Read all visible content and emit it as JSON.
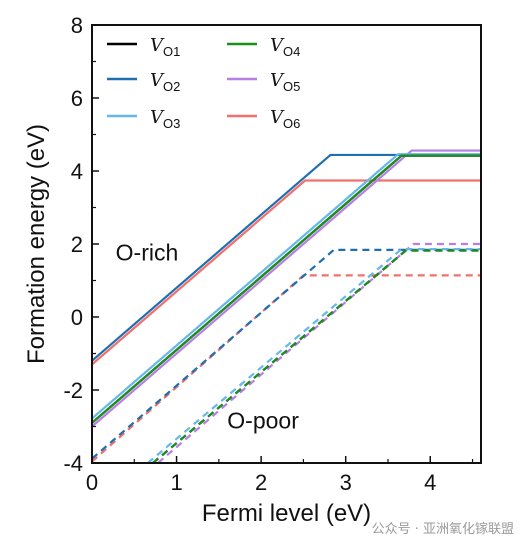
{
  "chart_data": {
    "type": "line",
    "xlabel": "Fermi level (eV)",
    "ylabel": "Formation energy (eV)",
    "xlim": [
      0,
      4.6
    ],
    "ylim": [
      -4,
      8
    ],
    "xticks": [
      0,
      1,
      2,
      3,
      4
    ],
    "yticks": [
      -4,
      -2,
      0,
      2,
      4,
      6,
      8
    ],
    "grid": false,
    "legend": "top-left",
    "legend_entries": [
      {
        "key": "VO1",
        "base": "V",
        "sub": "O1",
        "color": "#000000"
      },
      {
        "key": "VO2",
        "base": "V",
        "sub": "O2",
        "color": "#1f6fb0"
      },
      {
        "key": "VO3",
        "base": "V",
        "sub": "O3",
        "color": "#66b8e8"
      },
      {
        "key": "VO4",
        "base": "V",
        "sub": "O4",
        "color": "#1a8f1a"
      },
      {
        "key": "VO5",
        "base": "V",
        "sub": "O5",
        "color": "#b77ee6"
      },
      {
        "key": "VO6",
        "base": "V",
        "sub": "O6",
        "color": "#f0706e"
      }
    ],
    "annotations": [
      {
        "text": "O-rich",
        "x": 0.28,
        "y": 1.55
      },
      {
        "text": "O-poor",
        "x": 1.6,
        "y": -3.05
      }
    ],
    "series": [
      {
        "key": "VO1",
        "condition": "O-rich",
        "style": "solid",
        "x": [
          0,
          3.66,
          4.6
        ],
        "y": [
          -2.9,
          4.42,
          4.42
        ]
      },
      {
        "key": "VO2",
        "condition": "O-rich",
        "style": "solid",
        "x": [
          0,
          2.82,
          4.6
        ],
        "y": [
          -1.2,
          4.44,
          4.44
        ]
      },
      {
        "key": "VO3",
        "condition": "O-rich",
        "style": "solid",
        "x": [
          0,
          3.62,
          4.6
        ],
        "y": [
          -2.78,
          4.46,
          4.46
        ]
      },
      {
        "key": "VO4",
        "condition": "O-rich",
        "style": "solid",
        "x": [
          0,
          3.66,
          4.6
        ],
        "y": [
          -2.9,
          4.42,
          4.42
        ]
      },
      {
        "key": "VO5",
        "condition": "O-rich",
        "style": "solid",
        "x": [
          0,
          3.78,
          4.6
        ],
        "y": [
          -3.0,
          4.56,
          4.56
        ]
      },
      {
        "key": "VO6",
        "condition": "O-rich",
        "style": "solid",
        "x": [
          0,
          2.52,
          4.6
        ],
        "y": [
          -1.3,
          3.74,
          3.74
        ]
      },
      {
        "key": "VO1",
        "condition": "O-poor",
        "style": "dashed",
        "x": [
          0.72,
          3.71,
          4.6
        ],
        "y": [
          -4.0,
          1.82,
          1.82
        ]
      },
      {
        "key": "VO2",
        "condition": "O-poor",
        "style": "dashed",
        "x": [
          0,
          2.86,
          4.6
        ],
        "y": [
          -3.88,
          1.84,
          1.84
        ]
      },
      {
        "key": "VO3",
        "condition": "O-poor",
        "style": "dashed",
        "x": [
          0.66,
          3.66,
          4.6
        ],
        "y": [
          -4.0,
          1.86,
          1.86
        ]
      },
      {
        "key": "VO4",
        "condition": "O-poor",
        "style": "dashed",
        "x": [
          0.72,
          3.71,
          4.6
        ],
        "y": [
          -4.0,
          1.82,
          1.82
        ]
      },
      {
        "key": "VO5",
        "condition": "O-poor",
        "style": "dashed",
        "x": [
          0.78,
          3.8,
          4.6
        ],
        "y": [
          -4.0,
          2.0,
          2.0
        ]
      },
      {
        "key": "VO6",
        "condition": "O-poor",
        "style": "dashed",
        "x": [
          0,
          2.5,
          4.6
        ],
        "y": [
          -3.96,
          1.14,
          1.14
        ]
      }
    ]
  },
  "watermark": "公众号 · 亚洲氧化镓联盟"
}
